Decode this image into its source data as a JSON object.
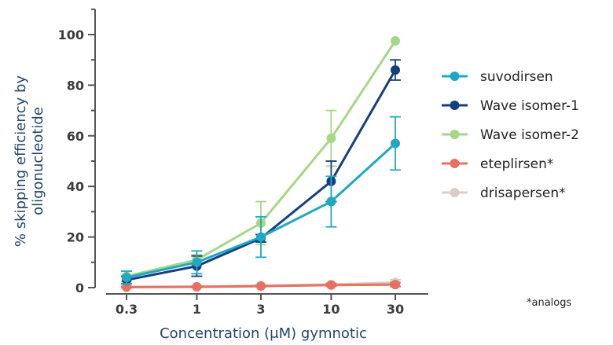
{
  "chart_data": {
    "type": "line",
    "title": "",
    "xlabel": "Concentration (μM) gymnotic",
    "ylabel": [
      "% skipping efficiency by",
      "oligonucleotide"
    ],
    "x_scale": "log",
    "categories": [
      "0.3",
      "1",
      "3",
      "10",
      "30"
    ],
    "x": [
      0.3,
      1,
      3,
      10,
      30
    ],
    "ylim": [
      0,
      110
    ],
    "yticks": [
      0,
      20,
      40,
      60,
      80,
      100
    ],
    "grid": false,
    "legend_position": "right",
    "series": [
      {
        "name": "suvodirsen",
        "color": "#1fa8c4",
        "values": [
          4,
          10,
          20,
          34,
          57
        ],
        "errors": [
          2.5,
          4.5,
          8,
          10,
          10.5
        ]
      },
      {
        "name": "Wave isomer-1",
        "color": "#153f7e",
        "values": [
          3,
          8.5,
          19.5,
          42,
          86
        ],
        "errors": [
          1.5,
          4,
          1.5,
          8,
          4
        ]
      },
      {
        "name": "Wave isomer-2",
        "color": "#a6d785",
        "values": [
          4.5,
          11,
          25.5,
          59,
          97.5
        ],
        "errors": [
          2,
          2,
          8.5,
          11,
          0
        ]
      },
      {
        "name": "eteplirsen*",
        "color": "#e87060",
        "values": [
          0.2,
          0.3,
          0.6,
          1,
          1.2
        ],
        "errors": [
          0.3,
          0.3,
          0.3,
          0.5,
          0.8
        ]
      },
      {
        "name": "drisapersen*",
        "color": "#d8d0c2",
        "values": [
          0.3,
          0.4,
          0.8,
          1.3,
          2
        ],
        "errors": [
          0.3,
          0.3,
          0.4,
          0.6,
          1.2
        ]
      }
    ],
    "annotations": [
      "*analogs"
    ]
  }
}
